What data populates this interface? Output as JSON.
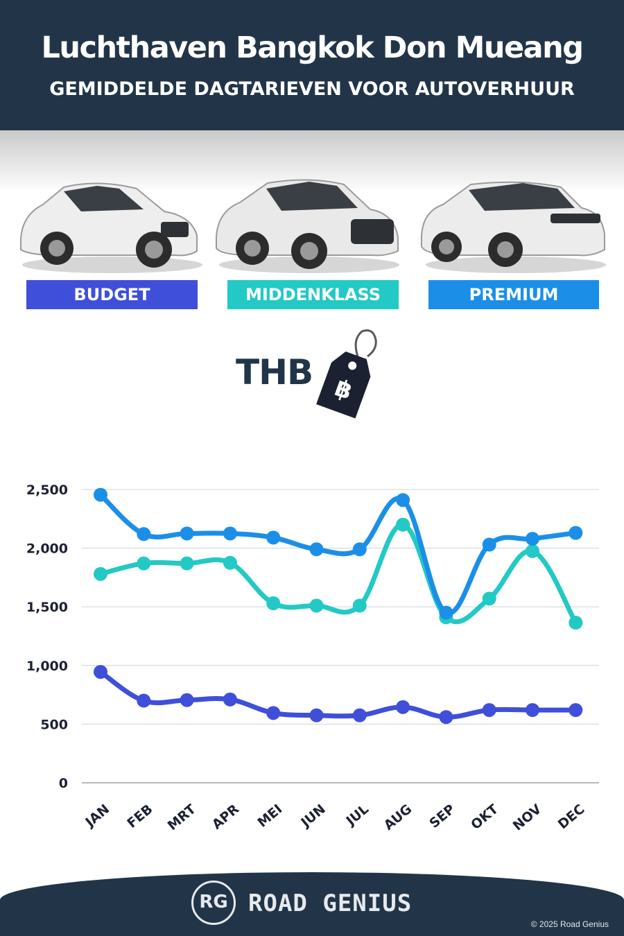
{
  "header": {
    "title": "Luchthaven Bangkok Don Mueang",
    "subtitle": "GEMIDDELDE DAGTARIEVEN VOOR AUTOVERHUUR"
  },
  "categories": [
    {
      "label": "BUDGET",
      "color": "#3f4fd9"
    },
    {
      "label": "MIDDENKLASS",
      "color": "#23c9c4"
    },
    {
      "label": "PREMIUM",
      "color": "#1b8fe8"
    }
  ],
  "currency": {
    "label": "THB",
    "symbol": "฿",
    "icon": "price-tag-icon"
  },
  "chart_data": {
    "type": "line",
    "categories": [
      "JAN",
      "FEB",
      "MRT",
      "APR",
      "MEI",
      "JUN",
      "JUL",
      "AUG",
      "SEP",
      "OKT",
      "NOV",
      "DEC"
    ],
    "y_ticks": [
      "0",
      "500",
      "1,000",
      "1,500",
      "2,000",
      "2,500"
    ],
    "ylim": [
      0,
      2500
    ],
    "grid": true,
    "series": [
      {
        "name": "PREMIUM",
        "color": "#1b8fe8",
        "values": [
          2455,
          2120,
          2125,
          2125,
          2090,
          1990,
          1990,
          2410,
          1450,
          2030,
          2080,
          2130
        ]
      },
      {
        "name": "MIDDENKLASS",
        "color": "#23c9c4",
        "values": [
          1780,
          1870,
          1870,
          1875,
          1530,
          1510,
          1510,
          2200,
          1410,
          1570,
          1975,
          1365
        ]
      },
      {
        "name": "BUDGET",
        "color": "#3f4fd9",
        "values": [
          945,
          700,
          705,
          710,
          595,
          575,
          575,
          645,
          560,
          620,
          620,
          620
        ]
      }
    ]
  },
  "footer": {
    "logo_initials": "RG",
    "brand": "ROAD GENIUS",
    "copyright": "© 2025 Road Genius"
  }
}
